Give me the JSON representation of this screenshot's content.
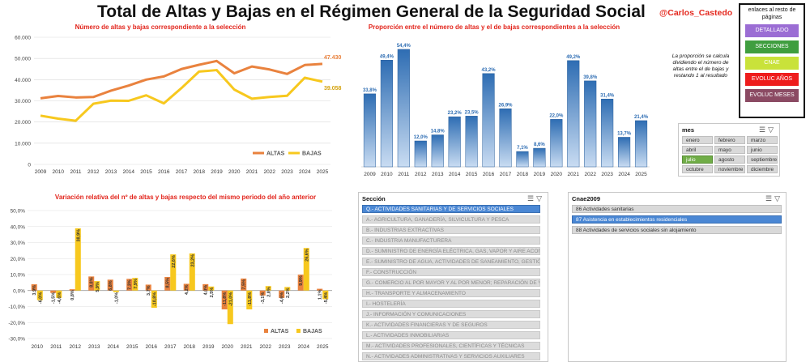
{
  "header": {
    "title": "Total de Altas y Bajas en el Régimen General de la Seguridad Social",
    "handle": "@Carlos_Castedo"
  },
  "links": {
    "heading": "enlaces al resto de páginas",
    "buttons": [
      {
        "label": "DETALLADO",
        "color": "#9b6dd4"
      },
      {
        "label": "SECCIONES",
        "color": "#3f9e3f"
      },
      {
        "label": "CNAE",
        "color": "#c9e23a"
      },
      {
        "label": "EVOLUC AÑOS",
        "color": "#ee1c1c"
      },
      {
        "label": "EVOLUC MESES",
        "color": "#8b4a63"
      }
    ]
  },
  "note": "La proporción se calcula dividiendo el número de altas entre el de bajas y restando 1 al resultado",
  "colors": {
    "altas": "#e9823e",
    "bajas": "#f7c81e",
    "bar_blue": "#2e6db3",
    "title_red": "#e2241b"
  },
  "chart_data": [
    {
      "type": "line",
      "title": "Número de altas y bajas correspondiente a la selección",
      "x": [
        "2009",
        "2010",
        "2011",
        "2012",
        "2013",
        "2014",
        "2015",
        "2016",
        "2017",
        "2018",
        "2019",
        "2020",
        "2021",
        "2022",
        "2023",
        "2024",
        "2025"
      ],
      "ylim": [
        0,
        60000
      ],
      "yticks": [
        "0",
        "10.000",
        "20.000",
        "30.000",
        "40.000",
        "50.000",
        "60.000"
      ],
      "series": [
        {
          "name": "ALTAS",
          "values": [
            31200,
            32300,
            31600,
            31800,
            34800,
            37200,
            40000,
            41500,
            45000,
            47000,
            48800,
            43000,
            46200,
            44800,
            42700,
            46900,
            47430
          ]
        },
        {
          "name": "BAJAS",
          "values": [
            23000,
            21600,
            20600,
            28600,
            30100,
            30000,
            32600,
            28800,
            36000,
            43800,
            44500,
            35300,
            31000,
            31800,
            32400,
            40900,
            39058
          ]
        }
      ],
      "end_labels": {
        "altas": "47.430",
        "bajas": "39.058"
      },
      "grid": true,
      "legend": "bottom-right"
    },
    {
      "type": "bar",
      "title": "Proporción entre el número de altas y el de bajas correspondientes a la selección",
      "categories": [
        "2009",
        "2010",
        "2011",
        "2012",
        "2013",
        "2014",
        "2015",
        "2016",
        "2017",
        "2018",
        "2019",
        "2020",
        "2021",
        "2022",
        "2023",
        "2024",
        "2025"
      ],
      "values": [
        33.8,
        49.4,
        54.4,
        12.0,
        14.8,
        23.2,
        23.5,
        43.2,
        26.9,
        7.1,
        8.6,
        22.0,
        49.2,
        39.8,
        31.4,
        13.7,
        21.4
      ],
      "labels": [
        "33,8%",
        "49,4%",
        "54,4%",
        "12,0%",
        "14,8%",
        "23,2%",
        "23,5%",
        "43,2%",
        "26,9%",
        "7,1%",
        "8,6%",
        "22,0%",
        "49,2%",
        "39,8%",
        "31,4%",
        "13,7%",
        "21,4%"
      ],
      "ylim": [
        0,
        60
      ]
    },
    {
      "type": "bar",
      "title": "Variación relativa del nº de altas y bajas respecto del mismo periodo del año anterior",
      "categories": [
        "2010",
        "2011",
        "2012",
        "2013",
        "2014",
        "2015",
        "2016",
        "2017",
        "2018",
        "2019",
        "2020",
        "2021",
        "2022",
        "2023",
        "2024",
        "2025"
      ],
      "ylim": [
        -30,
        50
      ],
      "yticks": [
        "-30,0%",
        "-20,0%",
        "-10,0%",
        "0,0%",
        "10,0%",
        "20,0%",
        "30,0%",
        "40,0%",
        "50,0%"
      ],
      "series": [
        {
          "name": "ALTAS",
          "values": [
            3.9,
            -1.5,
            0.8,
            8.8,
            6.8,
            7.3,
            3.7,
            8.5,
            4.2,
            4.0,
            -11.8,
            7.5,
            -3.1,
            -4.6,
            9.9,
            1.1
          ],
          "labels": [
            "3,9%",
            "-1,5%",
            "0,8%",
            "8,8%",
            "6,8%",
            "7,3%",
            "3,7%",
            "8,5%",
            "4,2%",
            "4,0%",
            "-11,8%",
            "7,5%",
            "-3,1%",
            "-4,6%",
            "9,9%",
            "1,1%"
          ]
        },
        {
          "name": "BAJAS",
          "values": [
            -6.0,
            -4.6,
            38.9,
            5.9,
            -1.0,
            7.9,
            -10.8,
            22.6,
            23.2,
            2.5,
            -21.0,
            -11.8,
            2.8,
            2.2,
            26.6,
            -5.4
          ],
          "labels": [
            "-6,0%",
            "-4,6%",
            "38,9%",
            "5,9%",
            "-1,0%",
            "7,9%",
            "-10,8%",
            "22,6%",
            "23,2%",
            "2,5%",
            "-21,0%",
            "-11,8%",
            "2,8%",
            "2,2%",
            "26,6%",
            "-5,4%"
          ]
        }
      ],
      "legend": "bottom-right"
    }
  ],
  "mes_slicer": {
    "header": "mes",
    "items": [
      "enero",
      "febrero",
      "marzo",
      "abril",
      "mayo",
      "junio",
      "julio",
      "agosto",
      "septiembre",
      "octubre",
      "noviembre",
      "diciembre"
    ],
    "selected": "julio"
  },
  "seccion_slicer": {
    "header": "Sección",
    "items": [
      "Q.- ACTIVIDADES SANITARIAS Y DE SERVICIOS SOCIALES",
      "A.- AGRICULTURA, GANADERÍA, SILVICULTURA Y PESCA",
      "B.- INDUSTRIAS EXTRACTIVAS",
      "C.- INDUSTRIA MANUFACTURERA",
      "D.- SUMINISTRO DE ENERGÍA ELÉCTRICA, GAS, VAPOR Y AIRE ACOND...",
      "E.- SUMINISTRO DE AGUA, ACTIVIDADES DE SANEAMIENTO, GESTIÓ...",
      "F.- CONSTRUCCIÓN",
      "G.- COMERCIO AL POR MAYOR Y AL POR MENOR; REPARACIÓN DE VE...",
      "H.- TRANSPORTE Y ALMACENAMIENTO",
      "I.- HOSTELERÍA",
      "J.- INFORMACIÓN Y COMUNICACIONES",
      "K.- ACTIVIDADES FINANCIERAS Y DE SEGUROS",
      "L.- ACTIVIDADES INMOBILIARIAS",
      "M.- ACTIVIDADES PROFESIONALES, CIENTÍFICAS Y TÉCNICAS",
      "N.- ACTIVIDADES ADMINISTRATIVAS Y SERVICIOS AUXILIARES"
    ],
    "selected": "Q.- ACTIVIDADES SANITARIAS Y DE SERVICIOS SOCIALES"
  },
  "cnae_slicer": {
    "header": "Cnae2009",
    "items": [
      "86 Actividades sanitarias",
      "87 Asistencia en establecimientos residenciales",
      "88 Actividades de servicios sociales sin alojamiento"
    ],
    "selected": "87 Asistencia en establecimientos residenciales"
  }
}
